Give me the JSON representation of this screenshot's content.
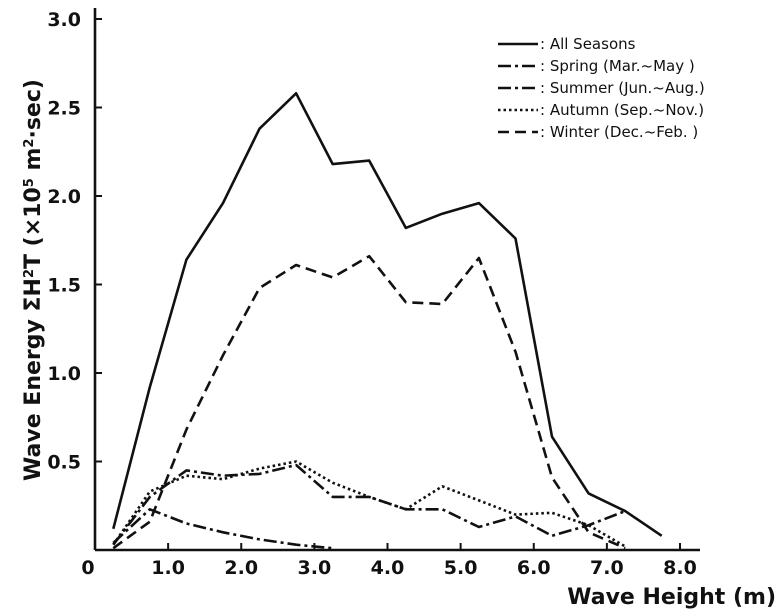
{
  "chart_data": {
    "type": "line",
    "xlabel": "Wave Height (m)",
    "ylabel_text": "Wave Energy ΣH²T (×10⁵ m²·sec)",
    "xlim": [
      0,
      8.0
    ],
    "ylim": [
      0,
      3.0
    ],
    "x_ticks": [
      {
        "v": 0,
        "label": "0"
      },
      {
        "v": 1.0,
        "label": "1.0"
      },
      {
        "v": 2.0,
        "label": "2.0"
      },
      {
        "v": 3.0,
        "label": "3.0"
      },
      {
        "v": 4.0,
        "label": "4.0"
      },
      {
        "v": 5.0,
        "label": "5.0"
      },
      {
        "v": 6.0,
        "label": "6.0"
      },
      {
        "v": 7.0,
        "label": "7.0"
      },
      {
        "v": 8.0,
        "label": "8.0"
      }
    ],
    "y_ticks": [
      {
        "v": 0.5,
        "label": "0.5"
      },
      {
        "v": 1.0,
        "label": "1.0"
      },
      {
        "v": 1.5,
        "label": "1.5"
      },
      {
        "v": 2.0,
        "label": "2.0"
      },
      {
        "v": 2.5,
        "label": "2.5"
      },
      {
        "v": 3.0,
        "label": "3.0"
      }
    ],
    "grid": false,
    "legend_position": "top-right",
    "series": [
      {
        "name": "All Seasons",
        "legend_label": ": All Seasons",
        "style": "solid",
        "x": [
          0.25,
          0.75,
          1.25,
          1.75,
          2.25,
          2.75,
          3.25,
          3.75,
          4.25,
          4.75,
          5.25,
          5.75,
          6.25,
          6.75,
          7.25,
          7.75
        ],
        "values": [
          0.12,
          0.92,
          1.64,
          1.96,
          2.38,
          2.58,
          2.18,
          2.2,
          1.82,
          1.9,
          1.96,
          1.76,
          0.64,
          0.32,
          0.22,
          0.08
        ]
      },
      {
        "name": "Spring",
        "legend_label": ": Spring  (Mar.~May )",
        "style": "dashdot",
        "x": [
          0.25,
          0.75,
          1.25,
          1.75,
          2.25,
          2.75,
          3.25
        ],
        "values": [
          0.04,
          0.23,
          0.15,
          0.1,
          0.06,
          0.03,
          0.01
        ]
      },
      {
        "name": "Summer",
        "legend_label": ": Summer (Jun.~Aug.)",
        "style": "dashdot",
        "x": [
          0.25,
          0.75,
          1.25,
          1.75,
          2.25,
          2.75,
          3.25,
          3.75,
          4.25,
          4.75,
          5.25,
          5.75,
          6.25,
          6.75,
          7.25
        ],
        "values": [
          0.03,
          0.3,
          0.45,
          0.42,
          0.43,
          0.48,
          0.3,
          0.3,
          0.23,
          0.23,
          0.13,
          0.19,
          0.08,
          0.14,
          0.22
        ]
      },
      {
        "name": "Autumn",
        "legend_label": ": Autumn  (Sep.~Nov.)",
        "style": "dotted",
        "x": [
          0.25,
          0.75,
          1.25,
          1.75,
          2.25,
          2.75,
          3.25,
          3.75,
          4.25,
          4.75,
          5.25,
          5.75,
          6.25,
          6.75,
          7.25
        ],
        "values": [
          0.03,
          0.33,
          0.42,
          0.4,
          0.46,
          0.5,
          0.38,
          0.3,
          0.23,
          0.36,
          0.28,
          0.2,
          0.21,
          0.14,
          0.02
        ]
      },
      {
        "name": "Winter",
        "legend_label": ": Winter     (Dec.~Feb. )",
        "style": "dashed",
        "x": [
          0.25,
          0.75,
          1.25,
          1.75,
          2.25,
          2.75,
          3.25,
          3.75,
          4.25,
          4.75,
          5.25,
          5.75,
          6.25,
          6.75,
          7.25
        ],
        "values": [
          0.01,
          0.16,
          0.68,
          1.1,
          1.48,
          1.61,
          1.54,
          1.66,
          1.4,
          1.39,
          1.65,
          1.12,
          0.41,
          0.1,
          0.01
        ]
      }
    ]
  }
}
